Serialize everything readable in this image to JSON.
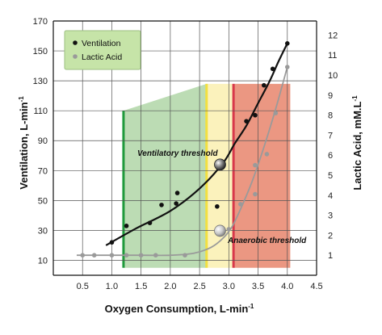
{
  "chart_data": {
    "type": "scatter",
    "xlabel": "Oxygen Consumption, L-min",
    "xlabel_sup": "-1",
    "ylabel_left": "Ventilation, L-min",
    "ylabel_left_sup": "-1",
    "ylabel_right": "Lactic Acid, mM.L",
    "ylabel_right_sup": "-1",
    "xlim": [
      0,
      4.5
    ],
    "ylim_left": [
      0,
      170
    ],
    "ylim_right": [
      0,
      12.7
    ],
    "x_ticks": [
      "0.5",
      "1.0",
      "1.5",
      "2.0",
      "2.5",
      "3.0",
      "3.5",
      "4.0",
      "4.5"
    ],
    "y_left_ticks": [
      "10",
      "30",
      "50",
      "70",
      "90",
      "110",
      "130",
      "150",
      "170"
    ],
    "y_right_ticks": [
      "1",
      "2",
      "3",
      "4",
      "5",
      "6",
      "7",
      "8",
      "9",
      "10",
      "11",
      "12"
    ],
    "grid": true,
    "legend_position": "top-left",
    "series": [
      {
        "name": "Ventilation",
        "axis": "left",
        "color": "#111111",
        "points": [
          [
            1.0,
            22
          ],
          [
            1.25,
            33
          ],
          [
            1.65,
            35
          ],
          [
            1.85,
            47
          ],
          [
            2.1,
            48
          ],
          [
            2.12,
            55
          ],
          [
            2.8,
            46
          ],
          [
            3.3,
            103
          ],
          [
            3.45,
            107
          ],
          [
            3.6,
            127
          ],
          [
            3.75,
            138
          ],
          [
            4.0,
            155
          ]
        ],
        "curve": [
          [
            0.9,
            20
          ],
          [
            1.4,
            31
          ],
          [
            2.0,
            43
          ],
          [
            2.5,
            58
          ],
          [
            2.9,
            75
          ],
          [
            3.1,
            88
          ],
          [
            3.3,
            100
          ],
          [
            3.5,
            115
          ],
          [
            3.7,
            130
          ],
          [
            3.85,
            143
          ],
          [
            4.0,
            155
          ]
        ]
      },
      {
        "name": "Lactic Acid",
        "axis": "right",
        "color": "#9a9a9a",
        "points": [
          [
            0.5,
            1.0
          ],
          [
            0.7,
            1.0
          ],
          [
            1.0,
            1.0
          ],
          [
            1.25,
            1.0
          ],
          [
            1.5,
            1.0
          ],
          [
            1.75,
            1.0
          ],
          [
            2.25,
            1.0
          ],
          [
            3.0,
            2.3
          ],
          [
            3.2,
            3.55
          ],
          [
            3.45,
            4.05
          ],
          [
            3.45,
            5.5
          ],
          [
            3.65,
            6.05
          ],
          [
            3.8,
            8.1
          ],
          [
            4.0,
            10.4
          ]
        ],
        "curve": [
          [
            0.4,
            1.0
          ],
          [
            1.0,
            1.0
          ],
          [
            1.5,
            1.0
          ],
          [
            2.0,
            1.0
          ],
          [
            2.4,
            1.1
          ],
          [
            2.7,
            1.4
          ],
          [
            2.9,
            1.85
          ],
          [
            3.05,
            2.4
          ],
          [
            3.2,
            3.3
          ],
          [
            3.4,
            4.7
          ],
          [
            3.6,
            6.4
          ],
          [
            3.8,
            8.3
          ],
          [
            4.0,
            10.4
          ]
        ]
      }
    ],
    "regions": [
      {
        "x_from": 1.2,
        "x_to": 2.62,
        "top_left": 110,
        "top_right": 128,
        "bottom": 5,
        "color": "#bcdcb4",
        "edge_color": "#1f9a3c",
        "edge": "left"
      },
      {
        "x_from": 2.62,
        "x_to": 3.08,
        "top": 128,
        "bottom": 5,
        "color": "#fbf2bc",
        "edge_color": "#f2e040",
        "edge": "left"
      },
      {
        "x_from": 3.08,
        "x_to": 4.05,
        "top": 128,
        "bottom": 5,
        "color": "#eb9782",
        "edge_color": "#d8384a",
        "edge": "left"
      }
    ],
    "annotations": [
      {
        "label": "Ventilatory threshold",
        "marker_x": 2.85,
        "marker_y": 74,
        "marker_axis": "left"
      },
      {
        "label": "Anaerobic threshold",
        "marker_x": 2.85,
        "marker_y": 2.22,
        "marker_axis": "right"
      }
    ]
  },
  "legend": {
    "background": "#c6e4a8",
    "items": [
      "Ventilation",
      "Lactic Acid"
    ]
  }
}
